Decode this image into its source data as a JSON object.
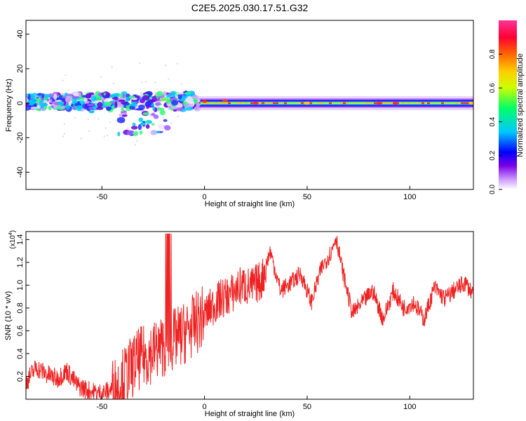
{
  "figure": {
    "title": "C2E5.2025.030.17.51.G32"
  },
  "chart_data": [
    {
      "type": "heatmap",
      "xlabel": "Height of straight line (km)",
      "ylabel": "Frequency (Hz)",
      "xlim": [
        -87,
        131
      ],
      "ylim": [
        -50,
        48
      ],
      "xticks": [
        -50,
        0,
        50,
        100
      ],
      "xtick_labels": [
        "-50",
        "0",
        "50",
        "100"
      ],
      "yticks": [
        -40,
        -20,
        0,
        20,
        40
      ],
      "ytick_labels": [
        "-40",
        "-20",
        "0",
        "20",
        "40"
      ],
      "grid": false,
      "colorbar": {
        "label": "Normalized spectral amplitude",
        "range": [
          0,
          1
        ],
        "ticks": [
          0.0,
          0.2,
          0.4,
          0.6,
          0.8
        ],
        "tick_labels": [
          "0.0",
          "0.2",
          "0.4",
          "0.6",
          "0.8"
        ],
        "colors": [
          "#ffffff",
          "#cc99ff",
          "#7a00e6",
          "#0000ff",
          "#00c8ff",
          "#00ff66",
          "#ccff00",
          "#ffcc00",
          "#ff6600",
          "#ff0033",
          "#ff3399"
        ]
      },
      "description_points": [
        {
          "x": -85,
          "freq": 1,
          "amp": 0.35
        },
        {
          "x": -70,
          "freq": 0,
          "amp": 0.4
        },
        {
          "x": -55,
          "freq": -5,
          "amp": 0.3
        },
        {
          "x": -45,
          "freq": 4,
          "amp": 0.35
        },
        {
          "x": -30,
          "freq": -12,
          "amp": 0.2
        },
        {
          "x": -20,
          "freq": 2,
          "amp": 0.5
        },
        {
          "x": 0,
          "freq": 1,
          "amp": 0.9
        },
        {
          "x": 10,
          "freq": 1.5,
          "amp": 0.9
        },
        {
          "x": 25,
          "freq": 0,
          "amp": 0.85
        },
        {
          "x": 50,
          "freq": 0,
          "amp": 0.7
        },
        {
          "x": 85,
          "freq": 0,
          "amp": 0.9
        },
        {
          "x": 93,
          "freq": 0,
          "amp": 0.9
        },
        {
          "x": 130,
          "freq": 0,
          "amp": 0.6
        }
      ]
    },
    {
      "type": "line",
      "xlabel": "Height of straight line (km)",
      "ylabel": "SNR (10 * v/v)",
      "multiplier_label": "(x10",
      "multiplier_exp": "4",
      "xlim": [
        -87,
        131
      ],
      "ylim": [
        0,
        1.47
      ],
      "xticks": [
        -50,
        0,
        50,
        100
      ],
      "xtick_labels": [
        "-50",
        "0",
        "50",
        "100"
      ],
      "yticks": [
        0.2,
        0.4,
        0.6,
        0.8,
        1.0,
        1.2,
        1.4
      ],
      "ytick_labels": [
        "0.2",
        "0.4",
        "0.6",
        "0.8",
        "1.0",
        "1.2",
        "1.4"
      ],
      "grid": false,
      "series": [
        {
          "color": "#ee2222",
          "x": [
            -87,
            -82,
            -77,
            -72,
            -67,
            -62,
            -57,
            -52,
            -47,
            -42,
            -37,
            -32,
            -27,
            -22,
            -17,
            -12,
            -7,
            -2,
            3,
            8,
            13,
            18,
            23,
            28,
            32,
            37,
            42,
            47,
            52,
            57,
            62,
            64,
            67,
            72,
            77,
            82,
            87,
            92,
            97,
            102,
            107,
            112,
            117,
            122,
            127,
            131
          ],
          "values": [
            0.15,
            0.28,
            0.22,
            0.18,
            0.25,
            0.12,
            0.08,
            0.05,
            0.07,
            0.12,
            0.25,
            0.35,
            0.4,
            0.45,
            0.5,
            0.55,
            0.62,
            0.7,
            0.8,
            0.88,
            0.92,
            1.0,
            0.98,
            1.05,
            1.3,
            0.95,
            1.02,
            1.1,
            0.85,
            1.15,
            1.3,
            1.43,
            1.15,
            0.75,
            0.85,
            0.95,
            0.7,
            0.95,
            0.8,
            0.85,
            0.7,
            0.98,
            0.88,
            0.96,
            1.02,
            0.92
          ]
        }
      ]
    }
  ]
}
